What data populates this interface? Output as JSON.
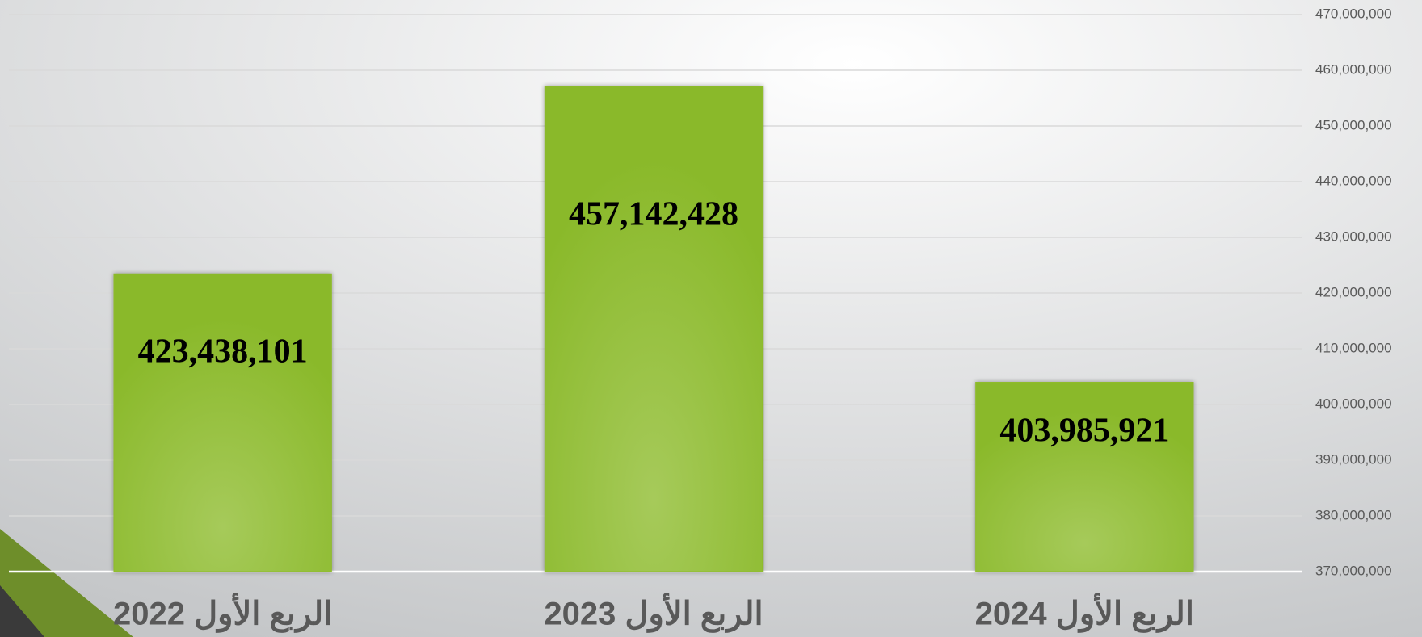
{
  "chart_data": {
    "type": "bar",
    "categories": [
      "الربع الأول 2022",
      "الربع الأول 2023",
      "الربع الأول 2024"
    ],
    "values": [
      423438101,
      457142428,
      403985921
    ],
    "value_labels": [
      "423,438,101",
      "457,142,428",
      "403,985,921"
    ],
    "color": "#8fbc2a",
    "ylim": [
      370000000,
      470000000
    ],
    "yticks": [
      {
        "value": 370000000,
        "label": "370,000,000"
      },
      {
        "value": 380000000,
        "label": "380,000,000"
      },
      {
        "value": 390000000,
        "label": "390,000,000"
      },
      {
        "value": 400000000,
        "label": "400,000,000"
      },
      {
        "value": 410000000,
        "label": "410,000,000"
      },
      {
        "value": 420000000,
        "label": "420,000,000"
      },
      {
        "value": 430000000,
        "label": "430,000,000"
      },
      {
        "value": 440000000,
        "label": "440,000,000"
      },
      {
        "value": 450000000,
        "label": "450,000,000"
      },
      {
        "value": 460000000,
        "label": "460,000,000"
      },
      {
        "value": 470000000,
        "label": "470,000,000"
      }
    ],
    "grid": true
  }
}
